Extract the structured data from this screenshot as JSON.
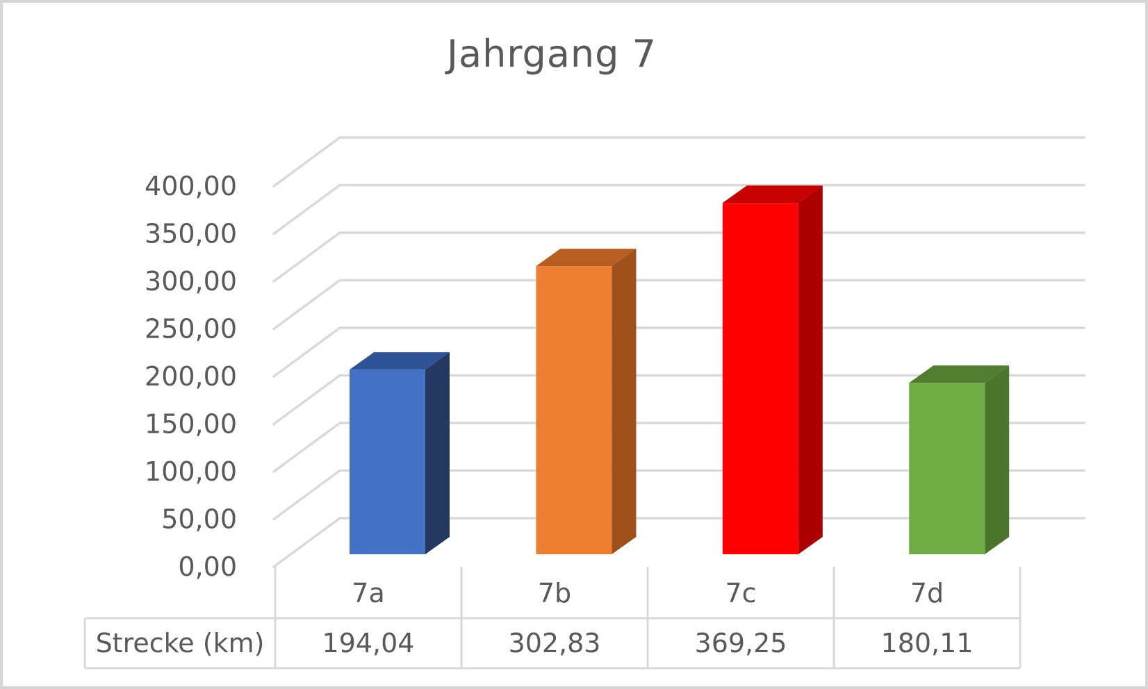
{
  "window": {
    "background": "#FFFFFF",
    "border_color": "#D6D6D6"
  },
  "chart_data": {
    "type": "bar",
    "variant": "3d-column",
    "title": "Jahrgang 7",
    "categories": [
      "7a",
      "7b",
      "7c",
      "7d"
    ],
    "series": [
      {
        "name": "Strecke (km)",
        "values": [
          194.04,
          302.83,
          369.25,
          180.11
        ]
      }
    ],
    "data_table": {
      "row_header": "Strecke (km)",
      "cells": [
        "194,04",
        "302,83",
        "369,25",
        "180,11"
      ]
    },
    "y_axis": {
      "min": 0,
      "max": 400,
      "step": 50,
      "tick_labels": [
        "0,00",
        "50,00",
        "100,00",
        "150,00",
        "200,00",
        "250,00",
        "300,00",
        "350,00",
        "400,00"
      ]
    },
    "legend": null,
    "grid": true,
    "colors": {
      "bars": [
        {
          "name": "blue",
          "front": "#4472C4",
          "top": "#2E5496",
          "side": "#24395F"
        },
        {
          "name": "orange",
          "front": "#ED7D31",
          "top": "#B85E20",
          "side": "#9E511C"
        },
        {
          "name": "red",
          "front": "#FE0000",
          "top": "#C60000",
          "side": "#AC0000"
        },
        {
          "name": "green",
          "front": "#70AD47",
          "top": "#507D30",
          "side": "#4C762E"
        }
      ],
      "grid": "#D9D9D9",
      "text": "#595959"
    }
  }
}
